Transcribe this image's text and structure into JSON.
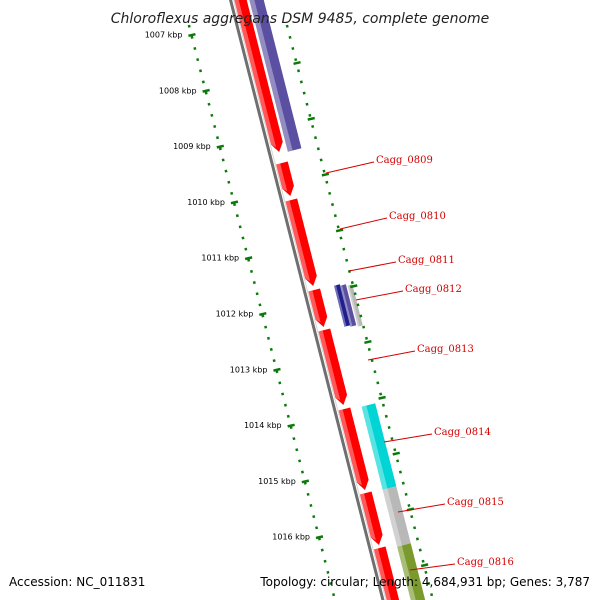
{
  "title": "Chloroflexus aggregans DSM 9485, complete genome",
  "footer": {
    "accession": "Accession: NC_011831",
    "summary": "Topology: circular; Length: 4,684,931 bp; Genes: 3,787"
  },
  "colors": {
    "backbone": "#6f6f6f",
    "cds": "#ff0000",
    "purple_feature": "#5a4fa0",
    "navy_feature": "#1f1f8f",
    "cyan_feature": "#00d4d4",
    "gray_feature": "#b8b8b8",
    "olive_feature": "#7a9a2e",
    "tick": "#0a7a0a",
    "label": "#d40000"
  },
  "ticks": [
    "1007 kbp",
    "1008 kbp",
    "1009 kbp",
    "1010 kbp",
    "1011 kbp",
    "1012 kbp",
    "1013 kbp",
    "1014 kbp",
    "1015 kbp",
    "1016 kbp"
  ],
  "genes": [
    {
      "label": "Cagg_0809"
    },
    {
      "label": "Cagg_0810"
    },
    {
      "label": "Cagg_0811"
    },
    {
      "label": "Cagg_0812"
    },
    {
      "label": "Cagg_0813"
    },
    {
      "label": "Cagg_0814"
    },
    {
      "label": "Cagg_0815"
    },
    {
      "label": "Cagg_0816"
    }
  ]
}
